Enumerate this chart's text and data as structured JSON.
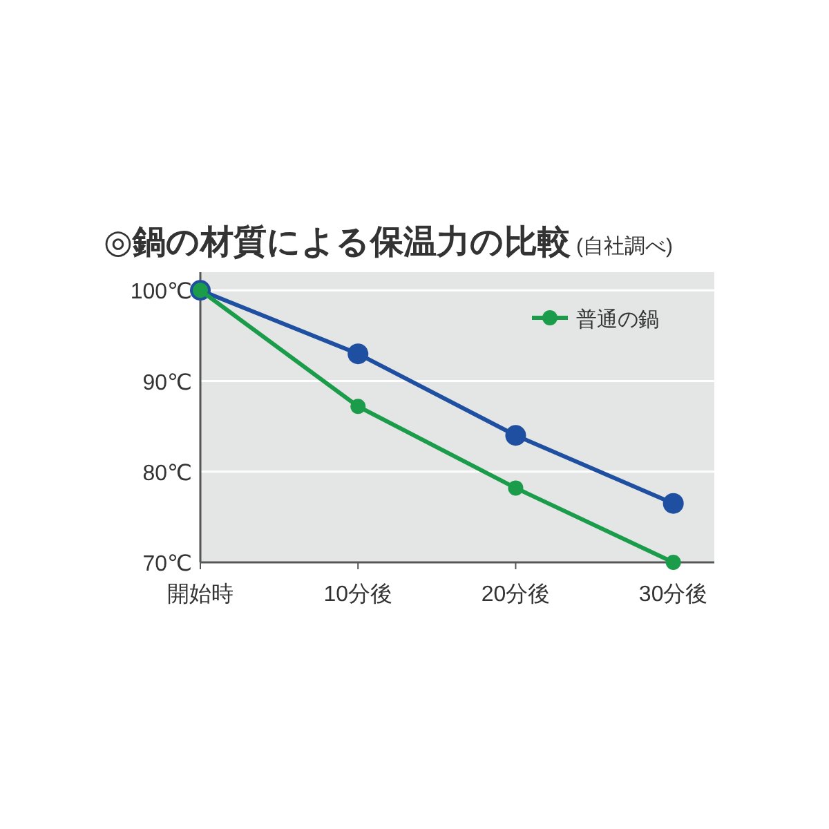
{
  "chart_data": {
    "type": "line",
    "title": "◎鍋の材質による保温力の比較",
    "subtitle": "(自社調べ)",
    "categories": [
      "開始時",
      "10分後",
      "20分後",
      "30分後"
    ],
    "series": [
      {
        "color": "#1f4fa0",
        "values": [
          100,
          93,
          84,
          76.5
        ]
      },
      {
        "name": "普通の鍋",
        "color": "#1a9c4a",
        "values": [
          100,
          87.2,
          78.2,
          70
        ]
      }
    ],
    "ylim": [
      70,
      102
    ],
    "yticks": [
      {
        "value": 70,
        "label": "70℃"
      },
      {
        "value": 80,
        "label": "80℃"
      },
      {
        "value": 90,
        "label": "90℃"
      },
      {
        "value": 100,
        "label": "100℃"
      }
    ],
    "grid": "y",
    "legend": "top right",
    "marker": "circle"
  }
}
